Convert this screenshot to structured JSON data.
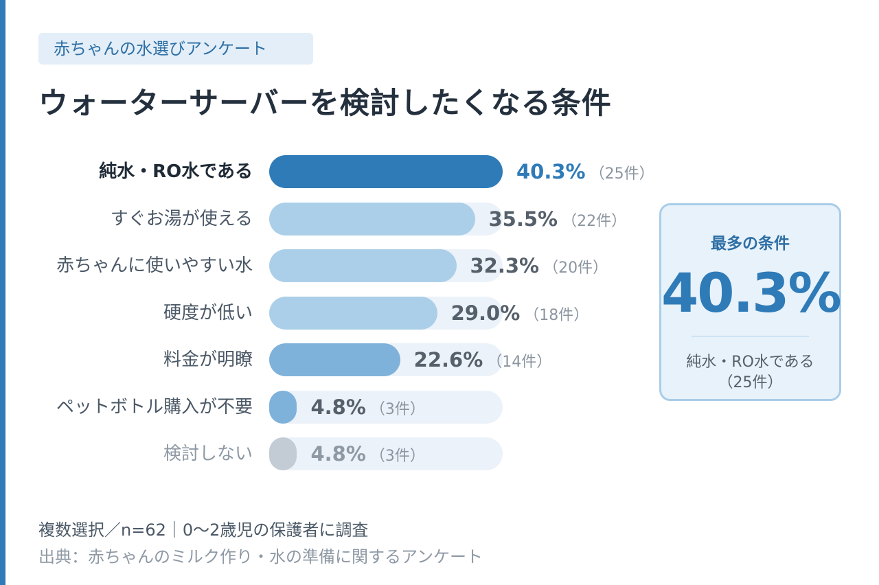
{
  "header": {
    "tag": "赤ちゃんの水選びアンケート",
    "title": "ウォーターサーバーを検討したくなる条件"
  },
  "chart_data": {
    "type": "bar",
    "orientation": "horizontal",
    "title": "ウォーターサーバーを検討したくなる条件",
    "categories": [
      "純水・RO水である",
      "すぐお湯が使える",
      "赤ちゃんに使いやすい水",
      "硬度が低い",
      "料金が明瞭",
      "ペットボトル購入が不要",
      "検討しない"
    ],
    "values": [
      40.3,
      35.5,
      32.3,
      29.0,
      22.6,
      4.8,
      4.8
    ],
    "value_labels": [
      "40.3%",
      "35.5%",
      "32.3%",
      "29.0%",
      "22.6%",
      "4.8%",
      "4.8%"
    ],
    "counts": [
      "（25件）",
      "（22件）",
      "（20件）",
      "（18件）",
      "（14件）",
      "（3件）",
      "（3件）"
    ],
    "colors": [
      "#2e7bb8",
      "#abcfe8",
      "#abcfe8",
      "#abcfe8",
      "#7fb2da",
      "#7fb2da",
      "#c3ccd5"
    ],
    "track_color": "#ecf2f9",
    "highlight_index": 0,
    "muted_index": 6,
    "xlim": [
      0,
      40.3
    ],
    "grid": false,
    "legend": "none"
  },
  "callout": {
    "label": "最多の条件",
    "value": "40.3%",
    "name": "純水・RO水である",
    "count": "（25件）"
  },
  "footer": {
    "note": "複数選択／n=62｜0〜2歳児の保護者に調査",
    "source": "出典：赤ちゃんのミルク作り・水の準備に関するアンケート"
  }
}
